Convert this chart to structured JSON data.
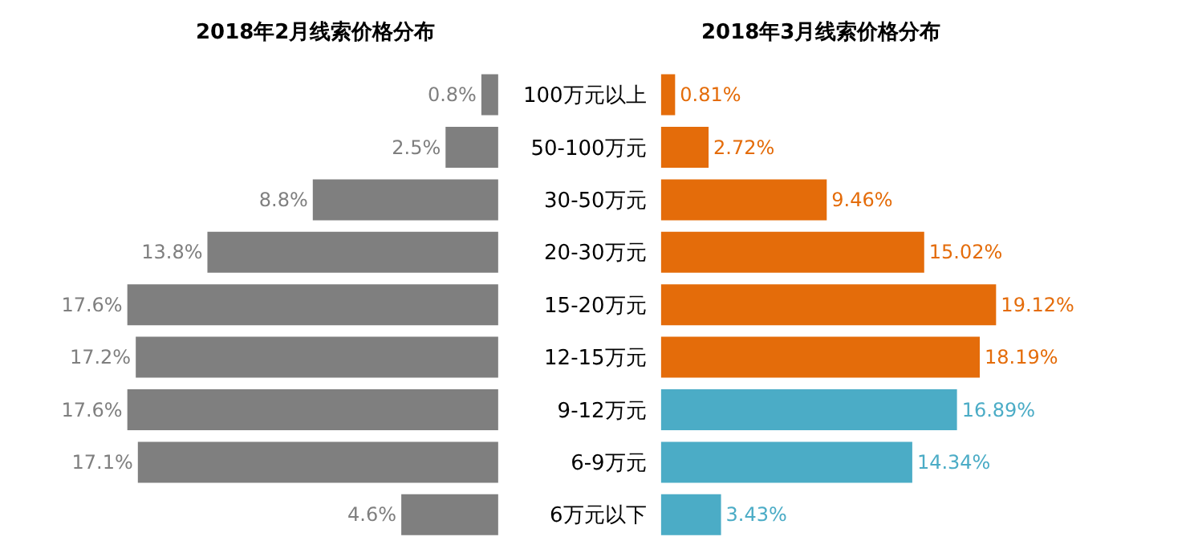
{
  "chart_data": [
    {
      "type": "bar",
      "orientation": "horizontal",
      "title": "2018年2月线索价格分布",
      "tick_labels": false,
      "categories": [
        "100万元以上",
        "50-100万元",
        "30-50万元",
        "20-30万元",
        "15-20万元",
        "12-15万元",
        "9-12万元",
        "6-9万元",
        "6万元以下"
      ],
      "values": [
        0.8,
        2.5,
        8.8,
        13.8,
        17.6,
        17.2,
        17.6,
        17.1,
        4.6
      ],
      "value_labels": [
        "0.8%",
        "2.5%",
        "8.8%",
        "13.8%",
        "17.6%",
        "17.2%",
        "17.6%",
        "17.1%",
        "4.6%"
      ],
      "colors": [
        "#7f7f7f",
        "#7f7f7f",
        "#7f7f7f",
        "#7f7f7f",
        "#7f7f7f",
        "#7f7f7f",
        "#7f7f7f",
        "#7f7f7f",
        "#7f7f7f"
      ]
    },
    {
      "type": "bar",
      "orientation": "horizontal",
      "title": "2018年3月线索价格分布",
      "tick_labels": "y",
      "categories": [
        "100万元以上",
        "50-100万元",
        "30-50万元",
        "20-30万元",
        "15-20万元",
        "12-15万元",
        "9-12万元",
        "6-9万元",
        "6万元以下"
      ],
      "values": [
        0.81,
        2.72,
        9.46,
        15.02,
        19.12,
        18.19,
        16.89,
        14.34,
        3.43
      ],
      "value_labels": [
        "0.81%",
        "2.72%",
        "9.46%",
        "15.02%",
        "19.12%",
        "18.19%",
        "16.89%",
        "14.34%",
        "3.43%"
      ],
      "colors": [
        "#e46c0a",
        "#e46c0a",
        "#e46c0a",
        "#e46c0a",
        "#e46c0a",
        "#e46c0a",
        "#4bacc6",
        "#4bacc6",
        "#4bacc6"
      ]
    }
  ]
}
